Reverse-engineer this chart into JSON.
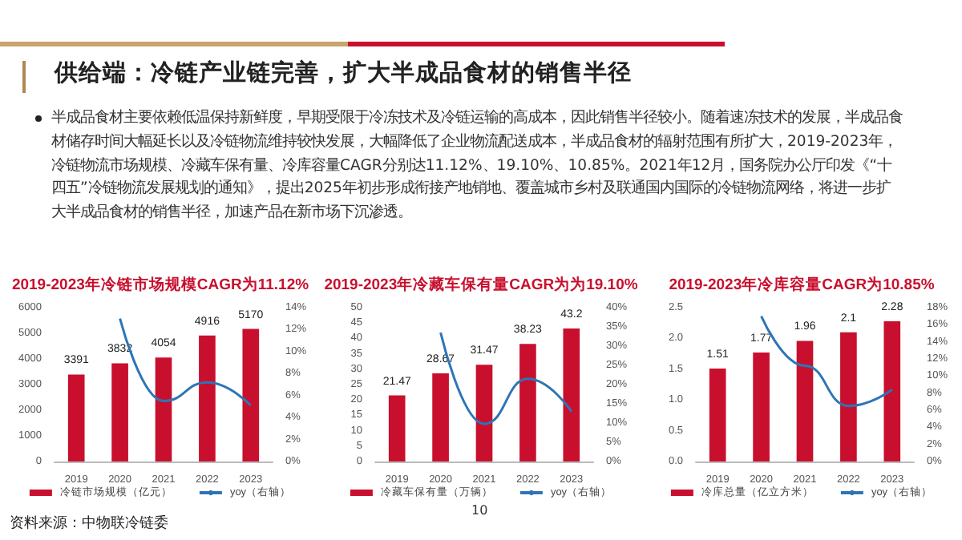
{
  "chart_data": [
    {
      "type": "other",
      "title": "供给端：冷链产业链完善，扩大半成品食材的销售半径",
      "annotations": [
        "半成品食材主要依赖低温保持新鲜度，早期受限于冷冻技术及冷链运输的高成本，因此销售半径较小。随着速冻技术的发展，半成品食材储存时间大幅延长以及冷链物流维持较快发展，大幅降低了企业物流配送成本，半成品食材的辐射范围有所扩大，2019-2023年，冷链物流市场规模、冷藏车保有量、冷库容量CAGR分别达11.12%、19.10%、10.85%。2021年12月，国务院办公厅印发《“十四五”冷链物流发展规划的通知》，提出2025年初步形成衔接产地销地、覆盖城市乡村及联通国内国际的冷链物流网络，将进一步扩大半成品食材的销售半径，加速产品在新市场下沉渗透。",
        "资料来源：中物联冷链委",
        "10"
      ]
    },
    {
      "type": "bar",
      "title": "2019-2023年冷链市场规模CAGR为11.12%",
      "categories": [
        "2019",
        "2020",
        "2021",
        "2022",
        "2023"
      ],
      "series": [
        {
          "name": "冷链市场规模（亿元）",
          "color": "#c8102e",
          "values": [
            3391,
            3832,
            4054,
            4916,
            5170
          ],
          "value_labels": [
            "3391",
            "3832",
            "4054",
            "4916",
            "5170"
          ]
        },
        {
          "name": "yoy（右轴）",
          "type": "line",
          "axis": "y2",
          "color": "#2e75b6",
          "values": [
            null,
            13.0,
            5.5,
            7.2,
            5.1
          ]
        }
      ],
      "ylim": [
        0,
        6000
      ],
      "yticks": [
        0,
        1000,
        2000,
        3000,
        4000,
        5000,
        6000
      ],
      "y2lim": [
        0,
        14
      ],
      "y2ticks": [
        {
          "value": 0,
          "label": "0%"
        },
        {
          "value": 2,
          "label": "2%"
        },
        {
          "value": 4,
          "label": "4%"
        },
        {
          "value": 6,
          "label": "6%"
        },
        {
          "value": 8,
          "label": "8%"
        },
        {
          "value": 10,
          "label": "10%"
        },
        {
          "value": 12,
          "label": "12%"
        },
        {
          "value": 14,
          "label": "14%"
        }
      ],
      "legend": "bottom",
      "marker": "none",
      "grid": false
    },
    {
      "type": "bar",
      "title": "2019-2023年冷藏车保有量CAGR为为19.10%",
      "categories": [
        "2019",
        "2020",
        "2021",
        "2022",
        "2023"
      ],
      "series": [
        {
          "name": "冷藏车保有量（万辆）",
          "color": "#c8102e",
          "values": [
            21.47,
            28.67,
            31.47,
            38.23,
            43.2
          ],
          "value_labels": [
            "21.47",
            "28.67",
            "31.47",
            "38.23",
            "43.2"
          ]
        },
        {
          "name": "yoy（右轴）",
          "type": "line",
          "axis": "y2",
          "color": "#2e75b6",
          "values": [
            null,
            33.5,
            9.8,
            21.5,
            13.0
          ]
        }
      ],
      "ylim": [
        0,
        50
      ],
      "yticks": [
        0,
        5,
        10,
        15,
        20,
        25,
        30,
        35,
        40,
        45,
        50
      ],
      "y2lim": [
        0,
        40
      ],
      "y2ticks": [
        {
          "value": 0,
          "label": "0%"
        },
        {
          "value": 5,
          "label": "5%"
        },
        {
          "value": 10,
          "label": "10%"
        },
        {
          "value": 15,
          "label": "15%"
        },
        {
          "value": 20,
          "label": "20%"
        },
        {
          "value": 25,
          "label": "25%"
        },
        {
          "value": 30,
          "label": "30%"
        },
        {
          "value": 35,
          "label": "35%"
        },
        {
          "value": 40,
          "label": "40%"
        }
      ],
      "legend": "bottom",
      "marker": "none",
      "grid": false
    },
    {
      "type": "bar",
      "title": "2019-2023年冷库容量CAGR为10.85%",
      "categories": [
        "2019",
        "2020",
        "2021",
        "2022",
        "2023"
      ],
      "series": [
        {
          "name": "冷库总量（亿立方米）",
          "color": "#c8102e",
          "values": [
            1.51,
            1.77,
            1.96,
            2.1,
            2.28
          ],
          "value_labels": [
            "1.51",
            "1.77",
            "1.96",
            "2.1",
            "2.28"
          ]
        },
        {
          "name": "yoy（右轴）",
          "type": "line",
          "axis": "y2",
          "color": "#2e75b6",
          "values": [
            null,
            17.0,
            11.2,
            6.5,
            8.4
          ]
        }
      ],
      "ylim": [
        0,
        2.5
      ],
      "yticks": [
        {
          "value": 0,
          "label": "0.0"
        },
        {
          "value": 0.5,
          "label": "0.5"
        },
        {
          "value": 1,
          "label": "1.0"
        },
        {
          "value": 1.5,
          "label": "1.5"
        },
        {
          "value": 2,
          "label": "2.0"
        },
        {
          "value": 2.5,
          "label": "2.5"
        }
      ],
      "y2lim": [
        0,
        18
      ],
      "y2ticks": [
        {
          "value": 0,
          "label": "0%"
        },
        {
          "value": 2,
          "label": "2%"
        },
        {
          "value": 4,
          "label": "4%"
        },
        {
          "value": 6,
          "label": "6%"
        },
        {
          "value": 8,
          "label": "8%"
        },
        {
          "value": 10,
          "label": "10%"
        },
        {
          "value": 12,
          "label": "12%"
        },
        {
          "value": 14,
          "label": "14%"
        },
        {
          "value": 16,
          "label": "16%"
        },
        {
          "value": 18,
          "label": "18%"
        }
      ],
      "legend": "bottom",
      "marker": "none",
      "grid": false
    }
  ]
}
